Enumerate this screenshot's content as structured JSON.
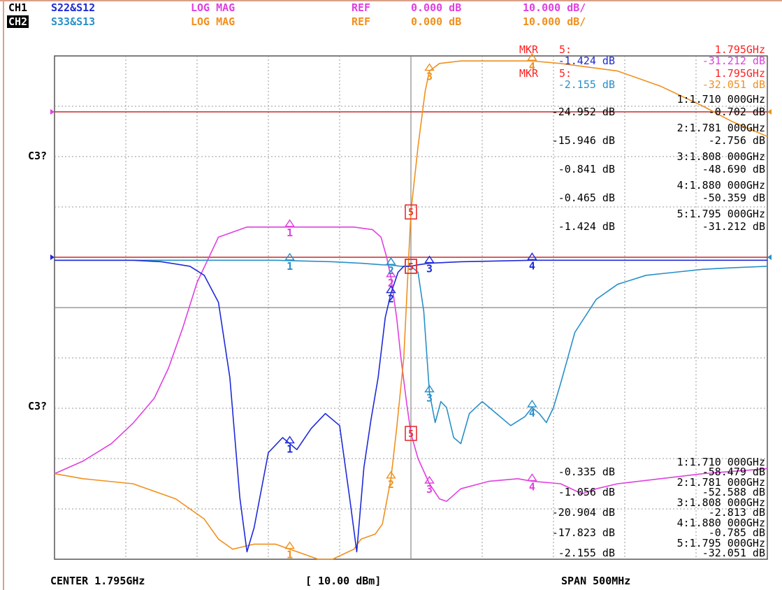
{
  "header": {
    "ch1": {
      "label": "CH1",
      "params": "S22&S12",
      "format": "LOG MAG",
      "ref_label": "REF",
      "ref": "0.000 dB",
      "scale": "10.000 dB/"
    },
    "ch2": {
      "label": "CH2",
      "params": "S33&S13",
      "format": "LOG MAG",
      "ref_label": "REF",
      "ref": "0.000 dB",
      "scale": "10.000 dB/"
    }
  },
  "side_labels": [
    "C3?",
    "C3?"
  ],
  "footer": {
    "center": "CENTER 1.795GHz",
    "power": "[ 10.00 dBm]",
    "span": "SPAN 500MHz"
  },
  "colors": {
    "s22": "#e040e0",
    "s12": "#f0901e",
    "s33": "#2890c8",
    "s13": "#1f2ad8",
    "ref_line": "#c8282c",
    "marker_text": "#ff2020",
    "grid": "#808080"
  },
  "chart_data": {
    "type": "line",
    "x_unit": "GHz",
    "xlim": [
      1.545,
      2.045
    ],
    "ch1_ylim": [
      -100,
      0
    ],
    "ch2_ylim": [
      -100,
      0
    ],
    "series": [
      {
        "key": "s22",
        "channel": 1,
        "x": [
          1.545,
          1.565,
          1.585,
          1.6,
          1.615,
          1.625,
          1.635,
          1.645,
          1.66,
          1.68,
          1.7,
          1.72,
          1.74,
          1.755,
          1.768,
          1.774,
          1.778,
          1.781,
          1.785,
          1.788,
          1.792,
          1.795,
          1.8,
          1.808,
          1.815,
          1.82,
          1.83,
          1.85,
          1.87,
          1.88,
          1.9,
          1.915,
          1.925,
          1.94,
          1.97,
          2.0,
          2.045
        ],
        "y": [
          -83,
          -80.5,
          -77,
          -73,
          -68,
          -62,
          -54,
          -45,
          -36,
          -34,
          -34,
          -34,
          -34,
          -34,
          -34.5,
          -36,
          -40,
          -44,
          -52,
          -60,
          -69,
          -75,
          -80,
          -85,
          -88,
          -88.5,
          -86,
          -84.5,
          -84,
          -84.5,
          -85,
          -87,
          -86,
          -85,
          -84,
          -83,
          -82
        ]
      },
      {
        "key": "s12",
        "channel": 1,
        "x": [
          1.545,
          1.565,
          1.6,
          1.63,
          1.65,
          1.66,
          1.67,
          1.685,
          1.7,
          1.71,
          1.72,
          1.73,
          1.74,
          1.755,
          1.76,
          1.77,
          1.775,
          1.781,
          1.785,
          1.79,
          1.795,
          1.8,
          1.805,
          1.808,
          1.815,
          1.83,
          1.85,
          1.88,
          1.9,
          1.94,
          1.97,
          2.0,
          2.02,
          2.045
        ],
        "y": [
          -83,
          -84,
          -85,
          -88,
          -92,
          -96,
          -98,
          -97,
          -97,
          -98,
          -99,
          -100,
          -100,
          -98,
          -96,
          -95,
          -93,
          -84,
          -74,
          -60,
          -31,
          -18,
          -7,
          -3,
          -1.5,
          -1,
          -1,
          -1,
          -1.5,
          -3,
          -6,
          -10,
          -13,
          -16
        ]
      },
      {
        "key": "s33",
        "channel": 2,
        "x": [
          1.545,
          1.6,
          1.65,
          1.7,
          1.74,
          1.76,
          1.775,
          1.781,
          1.788,
          1.795,
          1.8,
          1.804,
          1.808,
          1.812,
          1.816,
          1.82,
          1.825,
          1.83,
          1.836,
          1.845,
          1.855,
          1.865,
          1.875,
          1.88,
          1.885,
          1.89,
          1.895,
          1.9,
          1.91,
          1.925,
          1.94,
          1.96,
          1.98,
          2.0,
          2.02,
          2.045
        ],
        "y": [
          -1,
          -1,
          -1,
          -1,
          -1.5,
          -2,
          -2.5,
          -2.6,
          -3,
          -3,
          -5,
          -18,
          -45,
          -55,
          -48,
          -50,
          -60,
          -62,
          -52,
          -48,
          -52,
          -56,
          -53,
          -50,
          -52,
          -55,
          -50,
          -42,
          -25,
          -14,
          -9,
          -6,
          -5,
          -4,
          -3.5,
          -3
        ]
      },
      {
        "key": "s13",
        "channel": 2,
        "x": [
          1.545,
          1.6,
          1.62,
          1.64,
          1.65,
          1.66,
          1.668,
          1.675,
          1.68,
          1.685,
          1.695,
          1.705,
          1.715,
          1.725,
          1.735,
          1.745,
          1.752,
          1.757,
          1.762,
          1.767,
          1.772,
          1.777,
          1.781,
          1.786,
          1.79,
          1.795,
          1.8,
          1.808,
          1.83,
          1.88,
          1.92,
          1.96,
          2.0,
          2.045
        ],
        "y": [
          -1,
          -1,
          -1.5,
          -3,
          -6,
          -15,
          -40,
          -80,
          -98,
          -90,
          -65,
          -60,
          -64,
          -57,
          -52,
          -56,
          -80,
          -98,
          -70,
          -54,
          -40,
          -20,
          -12,
          -5,
          -3,
          -3,
          -2.5,
          -2,
          -1.5,
          -1,
          -1,
          -1,
          -1,
          -1
        ]
      }
    ],
    "markers": [
      {
        "n": "1",
        "freq": 1.71,
        "s22": -0.702,
        "s12": -24.952,
        "s33": -0.335,
        "s13": -58.479
      },
      {
        "n": "2",
        "freq": 1.781,
        "s22": -2.756,
        "s12": -15.946,
        "s33": -1.056,
        "s13": -52.588
      },
      {
        "n": "3",
        "freq": 1.808,
        "s22": -48.69,
        "s12": -0.841,
        "s33": -20.904,
        "s13": -2.813
      },
      {
        "n": "4",
        "freq": 1.88,
        "s22": -50.359,
        "s12": -0.465,
        "s33": -17.823,
        "s13": -0.785
      },
      {
        "n": "5",
        "freq": 1.795,
        "s22": -31.212,
        "s12": -1.424,
        "s33": -32.051,
        "s13": -2.155
      }
    ],
    "ch1_table": {
      "mkr_label": "MKR",
      "mkr_num": "5:",
      "mkr_freq": "1.795GHz",
      "mkr_a": "-1.424 dB",
      "mkr_b": "-31.212 dB",
      "rows": [
        {
          "freq": "1:1.710 000GHz",
          "a": "-24.952 dB",
          "b": "-0.702 dB"
        },
        {
          "freq": "2:1.781 000GHz",
          "a": "-15.946 dB",
          "b": "-2.756 dB"
        },
        {
          "freq": "3:1.808 000GHz",
          "a": "-0.841 dB",
          "b": "-48.690 dB"
        },
        {
          "freq": "4:1.880 000GHz",
          "a": "-0.465 dB",
          "b": "-50.359 dB"
        },
        {
          "freq": "5:1.795 000GHz",
          "a": "-1.424 dB",
          "b": "-31.212 dB"
        }
      ]
    },
    "ch2_table": {
      "mkr_label": "MKR",
      "mkr_num": "5:",
      "mkr_freq": "1.795GHz",
      "mkr_a": "-2.155 dB",
      "mkr_b": "-32.051 dB",
      "rows": [
        {
          "freq": "1:1.710 000GHz",
          "a": "-0.335 dB",
          "b": "-58.479 dB"
        },
        {
          "freq": "2:1.781 000GHz",
          "a": "-1.056 dB",
          "b": "-52.588 dB"
        },
        {
          "freq": "3:1.808 000GHz",
          "a": "-20.904 dB",
          "b": "-2.813 dB"
        },
        {
          "freq": "4:1.880 000GHz",
          "a": "-17.823 dB",
          "b": "-0.785 dB"
        },
        {
          "freq": "5:1.795 000GHz",
          "a": "-2.155 dB",
          "b": "-32.051 dB"
        }
      ]
    }
  }
}
